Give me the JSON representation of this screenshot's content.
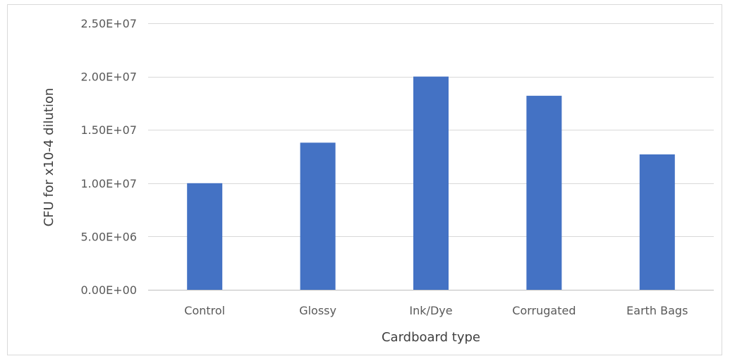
{
  "chart_data": {
    "type": "bar",
    "categories": [
      "Control",
      "Glossy",
      "Ink/Dye",
      "Corrugated",
      "Earth Bags"
    ],
    "values": [
      10000000,
      13800000,
      20000000,
      18200000,
      12700000
    ],
    "xlabel": "Cardboard type",
    "ylabel": "CFU for x10-4 dilution",
    "ylim": [
      0,
      25000000
    ],
    "yticks": [
      0,
      5000000,
      10000000,
      15000000,
      20000000,
      25000000
    ],
    "ytick_labels": [
      "0.00E+00",
      "5.00E+06",
      "1.00E+07",
      "1.50E+07",
      "2.00E+07",
      "2.50E+07"
    ],
    "grid": true,
    "legend": false,
    "bar_color": "#4472c4",
    "grid_color": "#d9d9d9",
    "axis_color": "#bfbfbf"
  }
}
